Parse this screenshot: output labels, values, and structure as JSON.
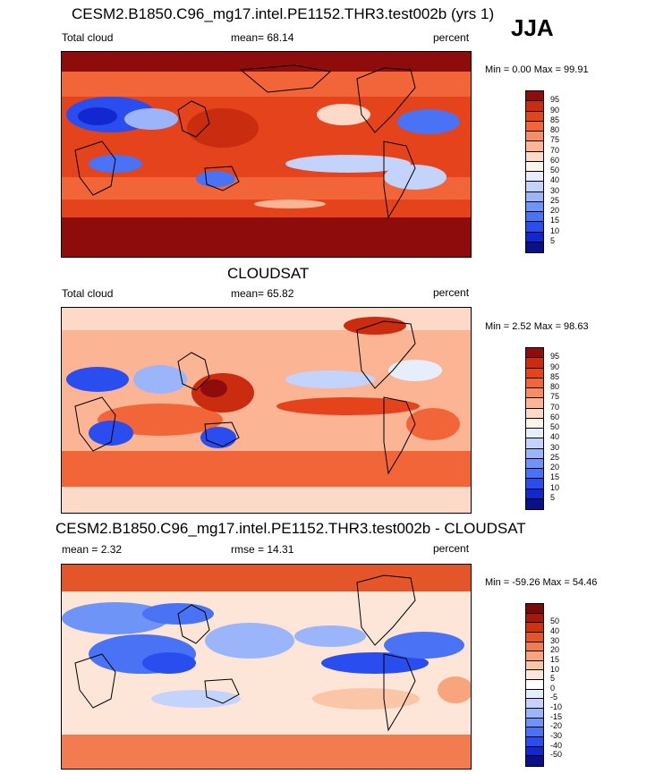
{
  "season": "JJA",
  "palette_full": [
    "#0b0f8a",
    "#1227cf",
    "#2a4df0",
    "#4a72f5",
    "#6f94f8",
    "#9bb5fa",
    "#c3d3fb",
    "#e6edfd",
    "#fff3ea",
    "#fddac7",
    "#fbb494",
    "#f88d63",
    "#f26538",
    "#e5431c",
    "#c92c0e",
    "#8e0c0c"
  ],
  "palette_diff": [
    "#0b0f8a",
    "#1227cf",
    "#2a4df0",
    "#4a72f5",
    "#6f94f8",
    "#9bb5fa",
    "#c3d3fb",
    "#e6edfd",
    "#ffffff",
    "#fde6d8",
    "#fbc6a8",
    "#f8a47c",
    "#f27c4f",
    "#e5552a",
    "#cc3312",
    "#a8180a",
    "#7a0a06"
  ],
  "panels": [
    {
      "title": "CESM2.B1850.C96_mg17.intel.PE1152.THR3.test002b (yrs 1)",
      "left_label": "Total cloud",
      "center_label": "mean=  68.14",
      "units": "percent",
      "minmax": "Min =   0.00 Max =  99.91",
      "colorbar_labels": [
        "95",
        "90",
        "85",
        "80",
        "75",
        "70",
        "60",
        "50",
        "40",
        "30",
        "25",
        "20",
        "15",
        "10",
        "5"
      ]
    },
    {
      "title": "CLOUDSAT",
      "left_label": "Total cloud",
      "center_label": "mean=  65.82",
      "units": "percent",
      "minmax": "Min =   2.52 Max =  98.63",
      "colorbar_labels": [
        "95",
        "90",
        "85",
        "80",
        "75",
        "70",
        "60",
        "50",
        "40",
        "30",
        "25",
        "20",
        "15",
        "10",
        "5"
      ]
    },
    {
      "title": "CESM2.B1850.C96_mg17.intel.PE1152.THR3.test002b - CLOUDSAT",
      "left_label": "mean =   2.32",
      "center_label": "rmse =  14.31",
      "units": "percent",
      "minmax": "Min = -59.26 Max =  54.46",
      "colorbar_labels": [
        "50",
        "40",
        "30",
        "20",
        "15",
        "10",
        "5",
        "0",
        "-5",
        "-10",
        "-15",
        "-20",
        "-30",
        "-40",
        "-50"
      ]
    }
  ]
}
